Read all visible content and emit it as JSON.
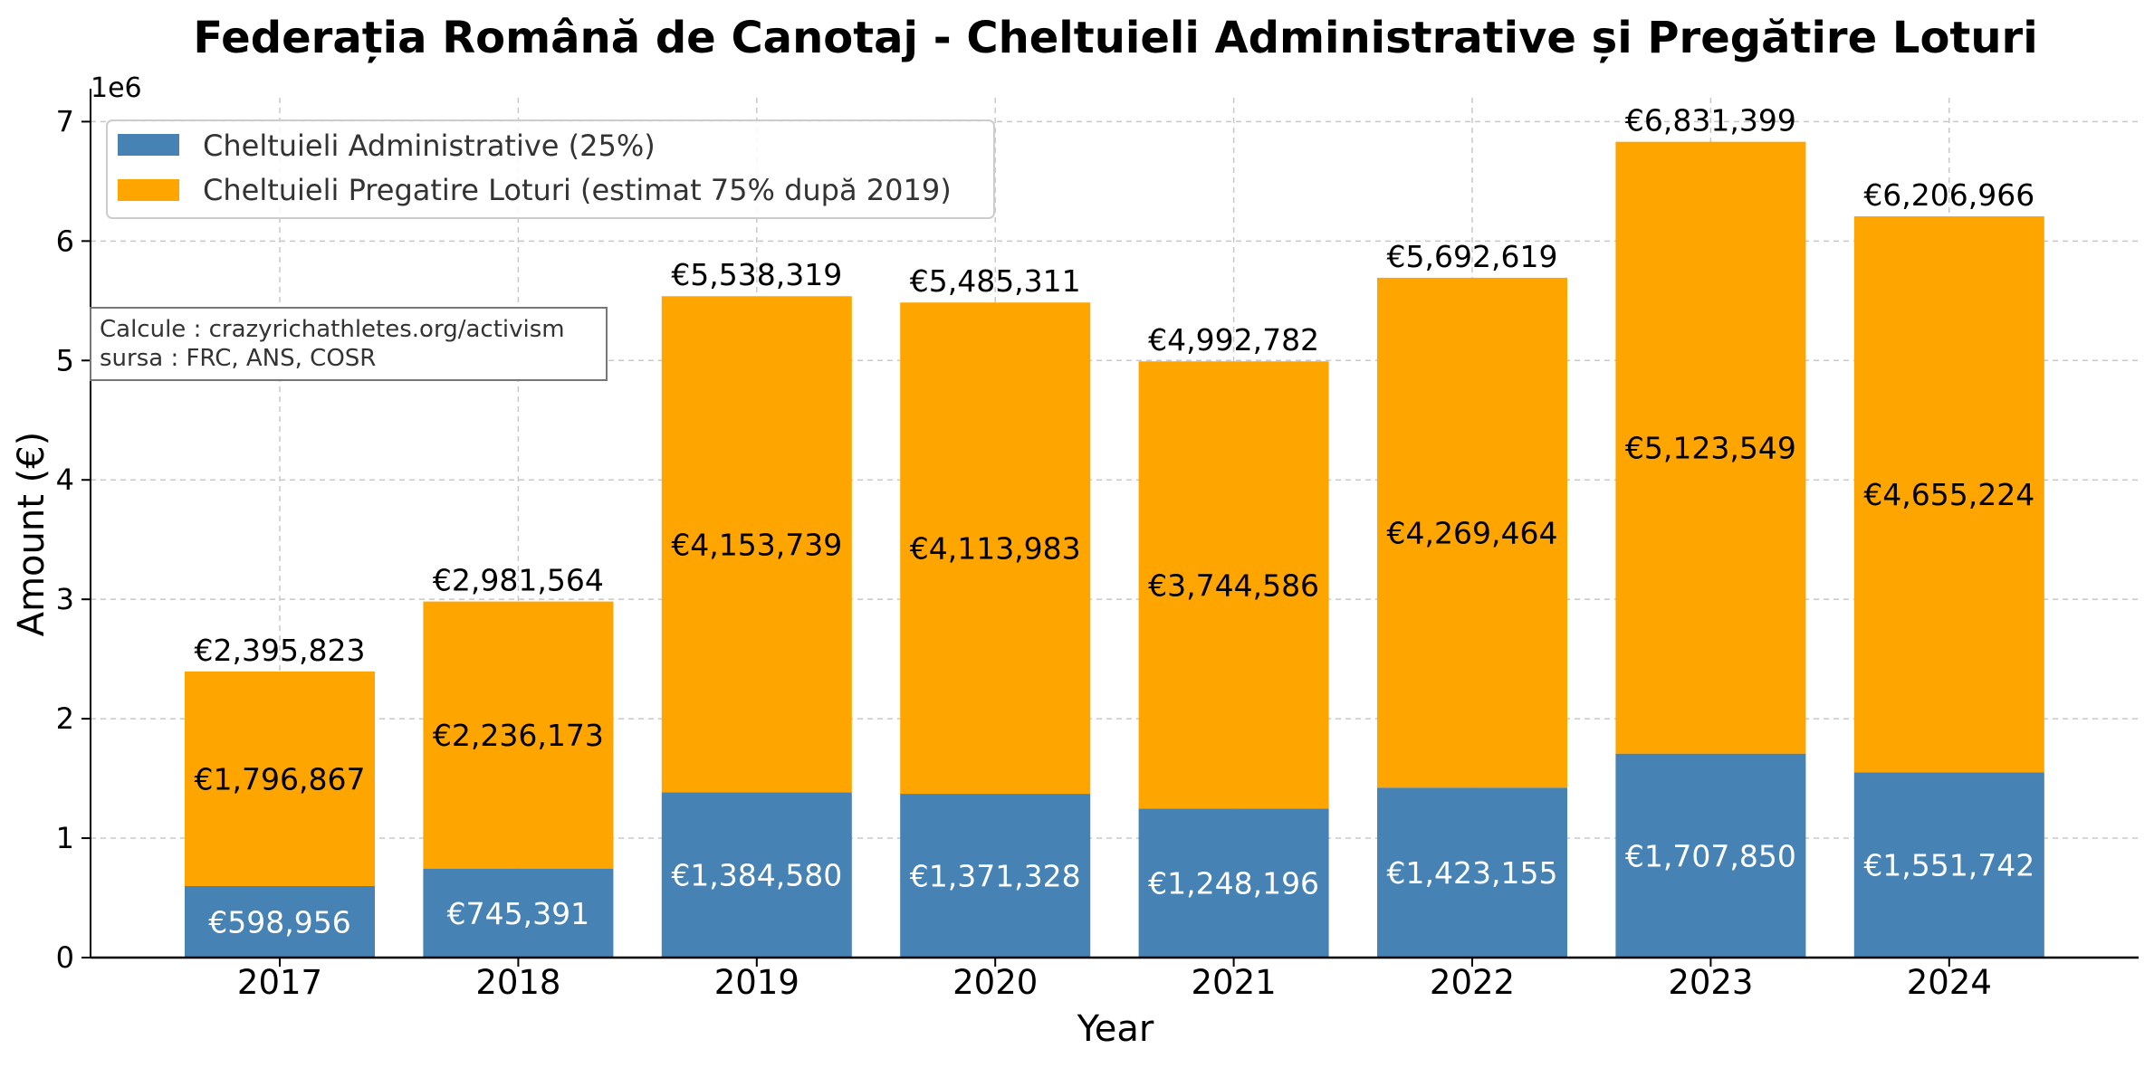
{
  "chart_data": {
    "type": "bar",
    "stacked": true,
    "title": "Federația Română de Canotaj - Cheltuieli Administrative și Pregătire Loturi",
    "xlabel": "Year",
    "ylabel": "Amount (€)",
    "y_multiplier_label": "1e6",
    "ylim": [
      0,
      7200000
    ],
    "yticks": [
      0,
      1000000,
      2000000,
      3000000,
      4000000,
      5000000,
      6000000,
      7000000
    ],
    "ytick_labels": [
      "0",
      "1",
      "2",
      "3",
      "4",
      "5",
      "6",
      "7"
    ],
    "grid": true,
    "legend_position": "top-left",
    "categories": [
      "2017",
      "2018",
      "2019",
      "2020",
      "2021",
      "2022",
      "2023",
      "2024"
    ],
    "series": [
      {
        "name": "Cheltuieli Administrative (25%)",
        "color": "#4682b4",
        "values": [
          598956,
          745391,
          1384580,
          1371328,
          1248196,
          1423155,
          1707850,
          1551742
        ],
        "labels": [
          "€598,956",
          "€745,391",
          "€1,384,580",
          "€1,371,328",
          "€1,248,196",
          "€1,423,155",
          "€1,707,850",
          "€1,551,742"
        ]
      },
      {
        "name": "Cheltuieli Pregatire Loturi (estimat 75% după 2019)",
        "color": "#ffa500",
        "values": [
          1796867,
          2236173,
          4153739,
          4113983,
          3744586,
          4269464,
          5123549,
          4655224
        ],
        "labels": [
          "€1,796,867",
          "€2,236,173",
          "€4,153,739",
          "€4,113,983",
          "€3,744,586",
          "€4,269,464",
          "€5,123,549",
          "€4,655,224"
        ]
      }
    ],
    "totals": [
      2395823,
      2981564,
      5538319,
      5485311,
      4992782,
      5692619,
      6831399,
      6206966
    ],
    "total_labels": [
      "€2,395,823",
      "€2,981,564",
      "€5,538,319",
      "€5,485,311",
      "€4,992,782",
      "€5,692,619",
      "€6,831,399",
      "€6,206,966"
    ],
    "annotation": {
      "lines": [
        "Calcule : crazyrichathletes.org/activism",
        "sursa : FRC, ANS, COSR"
      ]
    }
  }
}
